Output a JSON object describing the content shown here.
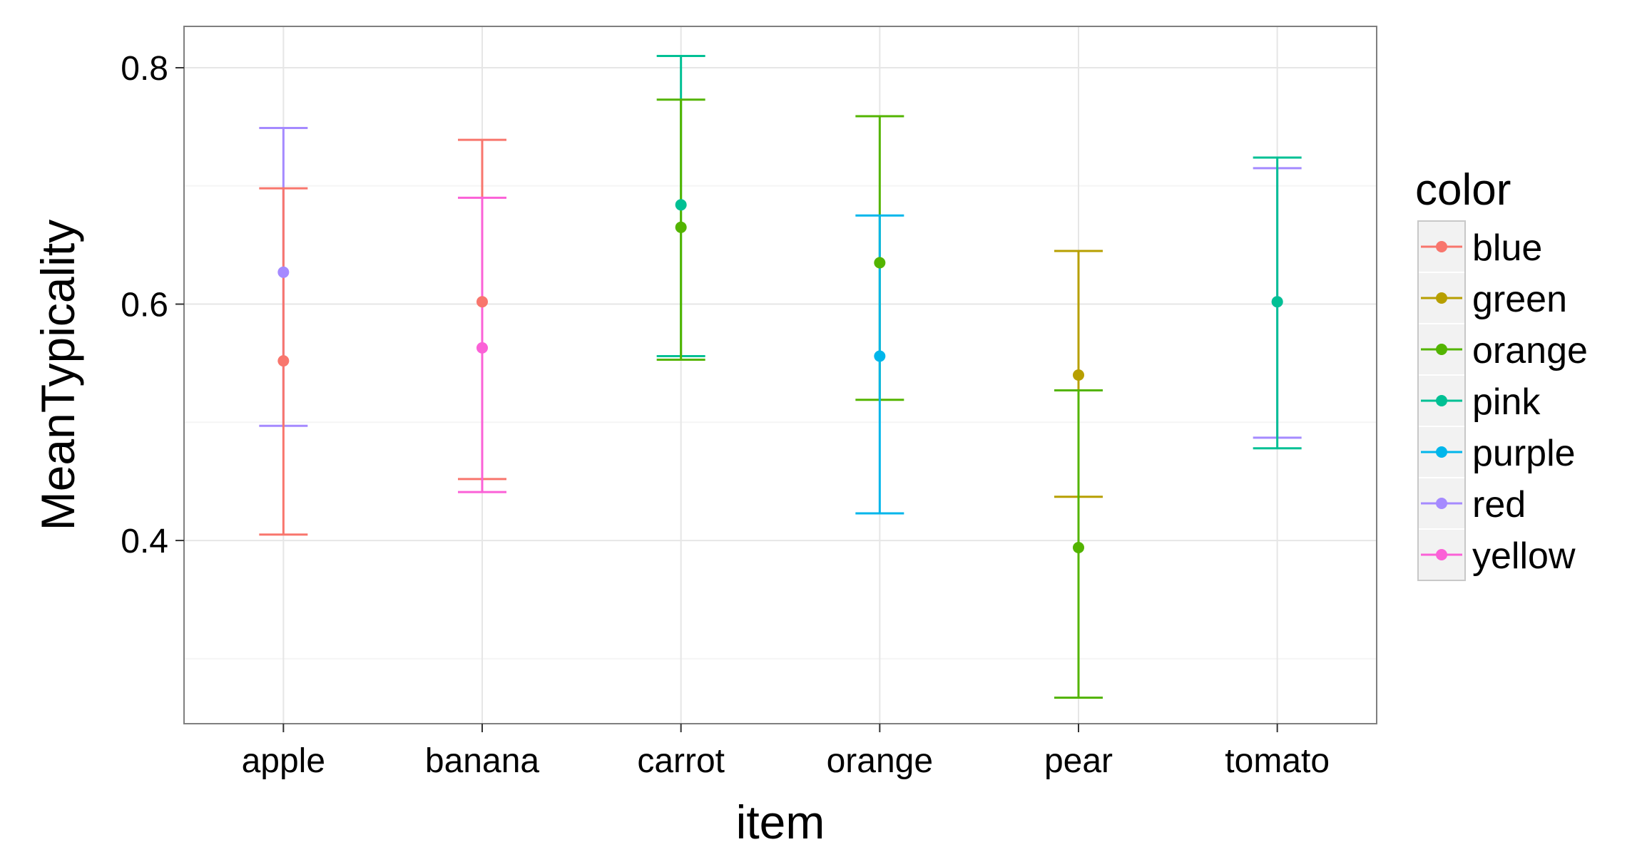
{
  "chart_data": {
    "type": "scatter",
    "xlabel": "item",
    "ylabel": "MeanTypicality",
    "categories": [
      "apple",
      "banana",
      "carrot",
      "orange",
      "pear",
      "tomato"
    ],
    "ylim": [
      0.245,
      0.835
    ],
    "yticks": [
      {
        "value": 0.4,
        "label": "0.4"
      },
      {
        "value": 0.6,
        "label": "0.6"
      },
      {
        "value": 0.8,
        "label": "0.8"
      }
    ],
    "grid": true,
    "legend": {
      "title": "color",
      "position": "right",
      "entries": [
        {
          "label": "blue",
          "color": "#F8766D"
        },
        {
          "label": "green",
          "color": "#B79F00"
        },
        {
          "label": "orange",
          "color": "#53B400"
        },
        {
          "label": "pink",
          "color": "#00C094"
        },
        {
          "label": "purple",
          "color": "#00B6EB"
        },
        {
          "label": "red",
          "color": "#A58AFF"
        },
        {
          "label": "yellow",
          "color": "#FB61D7"
        }
      ]
    },
    "points": [
      {
        "item": "apple",
        "color": "red",
        "mean": 0.627,
        "lower": 0.497,
        "upper": 0.749
      },
      {
        "item": "apple",
        "color": "blue",
        "mean": 0.552,
        "lower": 0.405,
        "upper": 0.698
      },
      {
        "item": "banana",
        "color": "blue",
        "mean": 0.602,
        "lower": 0.452,
        "upper": 0.739
      },
      {
        "item": "banana",
        "color": "yellow",
        "mean": 0.563,
        "lower": 0.441,
        "upper": 0.69
      },
      {
        "item": "carrot",
        "color": "pink",
        "mean": 0.684,
        "lower": 0.556,
        "upper": 0.81
      },
      {
        "item": "carrot",
        "color": "orange",
        "mean": 0.665,
        "lower": 0.553,
        "upper": 0.773
      },
      {
        "item": "orange",
        "color": "orange",
        "mean": 0.635,
        "lower": 0.519,
        "upper": 0.759
      },
      {
        "item": "orange",
        "color": "purple",
        "mean": 0.556,
        "lower": 0.423,
        "upper": 0.675
      },
      {
        "item": "pear",
        "color": "green",
        "mean": 0.54,
        "lower": 0.437,
        "upper": 0.645
      },
      {
        "item": "pear",
        "color": "orange",
        "mean": 0.394,
        "lower": 0.267,
        "upper": 0.527
      },
      {
        "item": "tomato",
        "color": "red",
        "mean": 0.602,
        "lower": 0.487,
        "upper": 0.715
      },
      {
        "item": "tomato",
        "color": "pink",
        "mean": 0.602,
        "lower": 0.478,
        "upper": 0.724
      }
    ]
  }
}
